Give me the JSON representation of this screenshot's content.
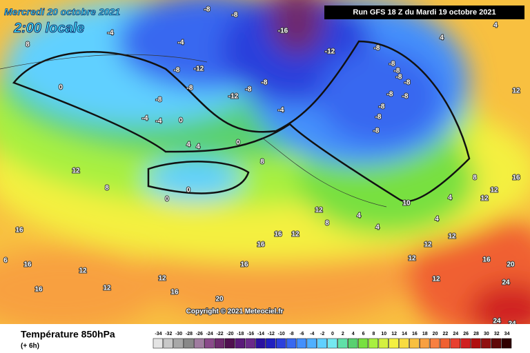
{
  "header": {
    "date": "Mercredi 20 octobre 2021",
    "time": "2:00 locale",
    "run": "Run GFS 18 Z du Mardi 19 octobre 2021"
  },
  "map": {
    "contour_labels": [
      -8,
      -8,
      -4,
      -4,
      -16,
      -12,
      -8,
      -8,
      -8,
      -8,
      -8,
      -8,
      -8,
      -8,
      -8,
      -8,
      -12,
      -8,
      -8,
      -4,
      -8,
      -12,
      -8,
      -8,
      -4,
      -4,
      0,
      4,
      4,
      0,
      8,
      0,
      0,
      12,
      8,
      16,
      16,
      12,
      12,
      12,
      16,
      16,
      20,
      16,
      16,
      16,
      12,
      12,
      8,
      4,
      4,
      10,
      4,
      4,
      12,
      12,
      12,
      16,
      20,
      24,
      12,
      8,
      12,
      12,
      16,
      12,
      4,
      4,
      6,
      0,
      8,
      24,
      24
    ],
    "copyright": "Copyright © 2021 Meteociel.fr"
  },
  "legend": {
    "title": "Température 850hPa",
    "subtitle": "(+ 6h)",
    "values": [
      -34,
      -32,
      -30,
      -28,
      -26,
      -24,
      -22,
      -20,
      -18,
      -16,
      -14,
      -12,
      -10,
      -8,
      -6,
      -4,
      -2,
      0,
      2,
      4,
      6,
      8,
      10,
      12,
      14,
      16,
      18,
      20,
      22,
      24,
      26,
      28,
      30,
      32,
      34
    ],
    "colors": [
      "#e4e4e4",
      "#c8c8c8",
      "#a8a8a8",
      "#888888",
      "#a07ca0",
      "#8a4a8a",
      "#6e2a6e",
      "#501050",
      "#5a1a7a",
      "#6a2a8a",
      "#2a12a0",
      "#2020c0",
      "#2c40dc",
      "#3868f0",
      "#4490fc",
      "#50b0ff",
      "#60d0ff",
      "#74e8f0",
      "#60e0a8",
      "#58d070",
      "#78e040",
      "#a8f040",
      "#d4f040",
      "#f4f040",
      "#f8dc40",
      "#f8c040",
      "#f8a040",
      "#f88040",
      "#f06030",
      "#e84030",
      "#d02020",
      "#b01010",
      "#901010",
      "#600808",
      "#300000"
    ]
  }
}
